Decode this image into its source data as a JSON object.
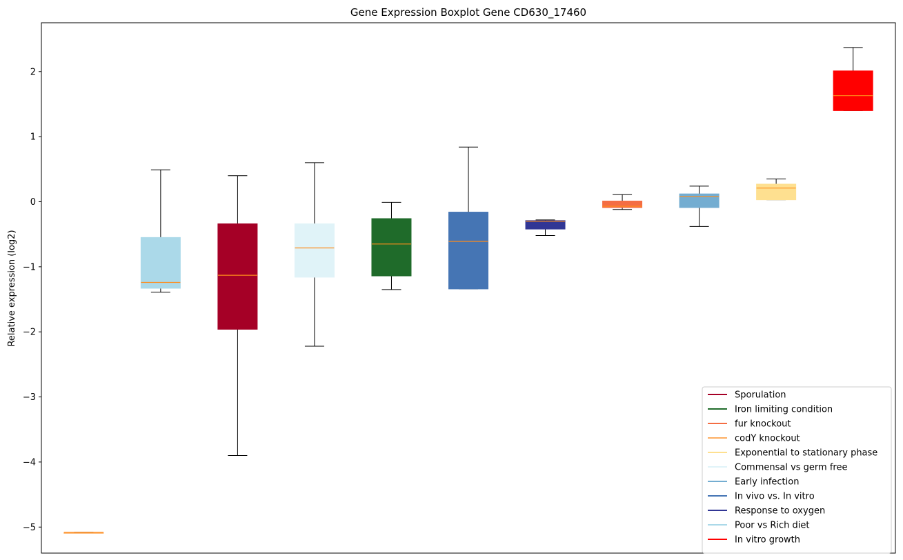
{
  "chart_data": {
    "type": "boxplot",
    "title": "Gene Expression Boxplot Gene CD630_17460",
    "xlabel": "",
    "ylabel": "Relative expression (log2)",
    "ylim": [
      -5.4,
      2.75
    ],
    "yticks": [
      -5,
      -4,
      -3,
      -2,
      -1,
      0,
      1,
      2
    ],
    "ytick_labels": [
      "−5",
      "−4",
      "−3",
      "−2",
      "−1",
      "0",
      "1",
      "2"
    ],
    "grid": false,
    "legend_position": "lower-right",
    "boxes": [
      {
        "group": "codY knockout",
        "color": "#FDAE61",
        "whisker_low": -5.08,
        "q1": -5.08,
        "median": -5.08,
        "q3": -5.08,
        "whisker_high": -5.08
      },
      {
        "group": "Poor vs Rich diet",
        "color": "#ABD9E9",
        "whisker_low": -1.39,
        "q1": -1.33,
        "median": -1.24,
        "q3": -0.55,
        "whisker_high": 0.49
      },
      {
        "group": "Sporulation",
        "color": "#A50026",
        "whisker_low": -3.9,
        "q1": -1.96,
        "median": -1.13,
        "q3": -0.34,
        "whisker_high": 0.4
      },
      {
        "group": "Commensal vs germ free",
        "color": "#E0F3F8",
        "whisker_low": -2.22,
        "q1": -1.16,
        "median": -0.71,
        "q3": -0.34,
        "whisker_high": 0.6
      },
      {
        "group": "Iron limiting condition",
        "color": "#1F6B2A",
        "whisker_low": -1.35,
        "q1": -1.14,
        "median": -0.65,
        "q3": -0.26,
        "whisker_high": -0.01
      },
      {
        "group": "In vivo vs. In vitro",
        "color": "#4575B4",
        "whisker_low": -1.34,
        "q1": -1.34,
        "median": -0.61,
        "q3": -0.16,
        "whisker_high": 0.84
      },
      {
        "group": "Response to oxygen",
        "color": "#313695",
        "whisker_low": -0.52,
        "q1": -0.42,
        "median": -0.3,
        "q3": -0.29,
        "whisker_high": -0.28
      },
      {
        "group": "fur knockout",
        "color": "#F46D43",
        "whisker_low": -0.12,
        "q1": -0.09,
        "median": -0.07,
        "q3": 0.01,
        "whisker_high": 0.11
      },
      {
        "group": "Early infection",
        "color": "#74ADD1",
        "whisker_low": -0.38,
        "q1": -0.09,
        "median": 0.08,
        "q3": 0.12,
        "whisker_high": 0.24
      },
      {
        "group": "Exponential to stationary phase",
        "color": "#FEE090",
        "whisker_low": 0.03,
        "q1": 0.03,
        "median": 0.21,
        "q3": 0.27,
        "whisker_high": 0.35
      },
      {
        "group": "In vitro growth",
        "color": "#FF0000",
        "whisker_low": 1.4,
        "q1": 1.4,
        "median": 1.63,
        "q3": 2.01,
        "whisker_high": 2.37
      }
    ],
    "legend": [
      {
        "label": "Sporulation",
        "color": "#A50026"
      },
      {
        "label": "Iron limiting condition",
        "color": "#1F6B2A"
      },
      {
        "label": "fur knockout",
        "color": "#F46D43"
      },
      {
        "label": "codY knockout",
        "color": "#FDAE61"
      },
      {
        "label": "Exponential to stationary phase",
        "color": "#FEE090"
      },
      {
        "label": "Commensal vs germ free",
        "color": "#E0F3F8"
      },
      {
        "label": "Early infection",
        "color": "#74ADD1"
      },
      {
        "label": "In vivo vs. In vitro",
        "color": "#4575B4"
      },
      {
        "label": "Response to oxygen",
        "color": "#313695"
      },
      {
        "label": "Poor vs Rich diet",
        "color": "#ABD9E9"
      },
      {
        "label": "In vitro growth",
        "color": "#FF0000"
      }
    ],
    "median_color": "#FF8C1A"
  }
}
